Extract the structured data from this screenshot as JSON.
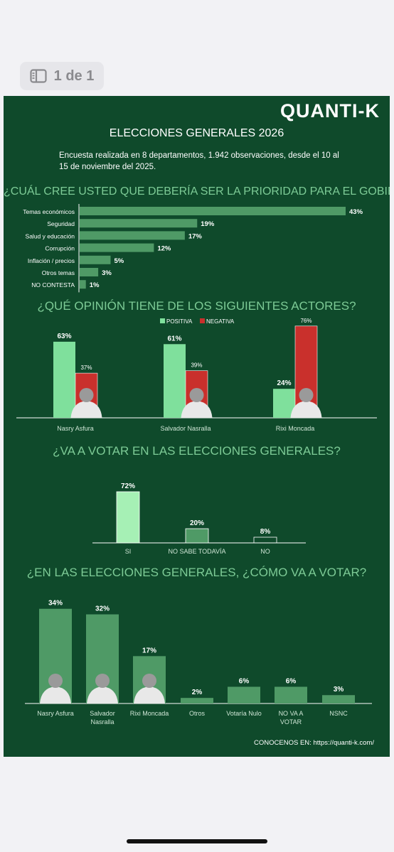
{
  "pager": {
    "label": "1 de 1"
  },
  "brand": {
    "logo": "QUANTI-K"
  },
  "header": {
    "title": "ELECCIONES GENERALES 2026",
    "subtitle": "Encuesta realizada en 8 departamentos, 1.942 observaciones, desde el 10 al 15 de noviembre del 2025."
  },
  "questions": {
    "q1": "¿CUÁL CREE USTED QUE DEBERÍA SER LA PRIORIDAD PARA EL GOBIERNO?",
    "q2": "¿QUÉ OPINIÓN TIENE DE LOS SIGUIENTES ACTORES?",
    "q3": "¿VA A VOTAR EN LAS ELECCIONES GENERALES?",
    "q4": "¿EN LAS ELECCIONES GENERALES, ¿CÓMO VA A VOTAR?"
  },
  "footer": {
    "label": "CONOCENOS EN:",
    "url": "https://quanti-k.com/"
  },
  "colors": {
    "background": "#0f4a2b",
    "bar": "#4f9a66",
    "positive": "#7fe09c",
    "negative": "#c9302c",
    "accent": "#7dcb96",
    "si": "#a6f0b5"
  },
  "chart_data": [
    {
      "type": "bar",
      "orientation": "horizontal",
      "categories": [
        "Temas económicos",
        "Seguridad",
        "Salud y educación",
        "Corrupción",
        "Inflación / precios",
        "Otros temas",
        "NO CONTESTA"
      ],
      "values": [
        43,
        19,
        17,
        12,
        5,
        3,
        1
      ],
      "unit": "%"
    },
    {
      "type": "bar",
      "categories": [
        "Nasry Asfura",
        "Salvador Nasralla",
        "Rixi Moncada"
      ],
      "series": [
        {
          "name": "POSITIVA",
          "values": [
            63,
            61,
            24
          ]
        },
        {
          "name": "NEGATIVA",
          "values": [
            37,
            39,
            76
          ]
        }
      ],
      "legend": "top-center",
      "unit": "%"
    },
    {
      "type": "bar",
      "categories": [
        "SI",
        "NO SABE TODAVÍA",
        "NO"
      ],
      "values": [
        72,
        20,
        8
      ],
      "unit": "%"
    },
    {
      "type": "bar",
      "categories": [
        "Nasry Asfura",
        "Salvador Nasralla",
        "Rixi Moncada",
        "Otros",
        "Votaría Nulo",
        "NO VA A VOTAR",
        "NSNC"
      ],
      "values": [
        34,
        32,
        17,
        2,
        6,
        6,
        3
      ],
      "unit": "%"
    }
  ]
}
